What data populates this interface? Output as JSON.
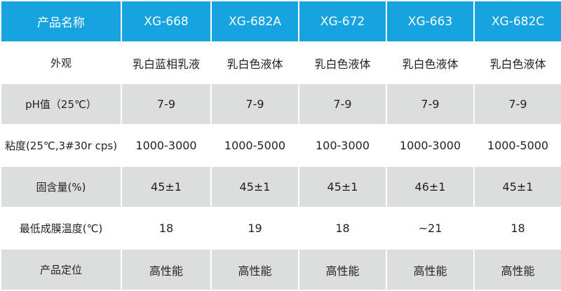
{
  "table": {
    "header": [
      "产品名称",
      "XG-668",
      "XG-682A",
      "XG-672",
      "XG-663",
      "XG-682C"
    ],
    "rows": [
      [
        "外观",
        "乳白蓝相乳液",
        "乳白色液体",
        "乳白色液体",
        "乳白色液体",
        "乳白色液体"
      ],
      [
        "pH值（25℃）",
        "7-9",
        "7-9",
        "7-9",
        "7-9",
        "7-9"
      ],
      [
        "粘度(25℃,3#30r cps)",
        "1000-3000",
        "1000-5000",
        "100-3000",
        "1000-3000",
        "1000-5000"
      ],
      [
        "固含量(%)",
        "45±1",
        "45±1",
        "45±1",
        "46±1",
        "45±1"
      ],
      [
        "最低成膜温度(℃)",
        "18",
        "19",
        "18",
        "~21",
        "18"
      ],
      [
        "产品定位",
        "高性能",
        "高性能",
        "高性能",
        "高性能",
        "高性能"
      ]
    ]
  }
}
